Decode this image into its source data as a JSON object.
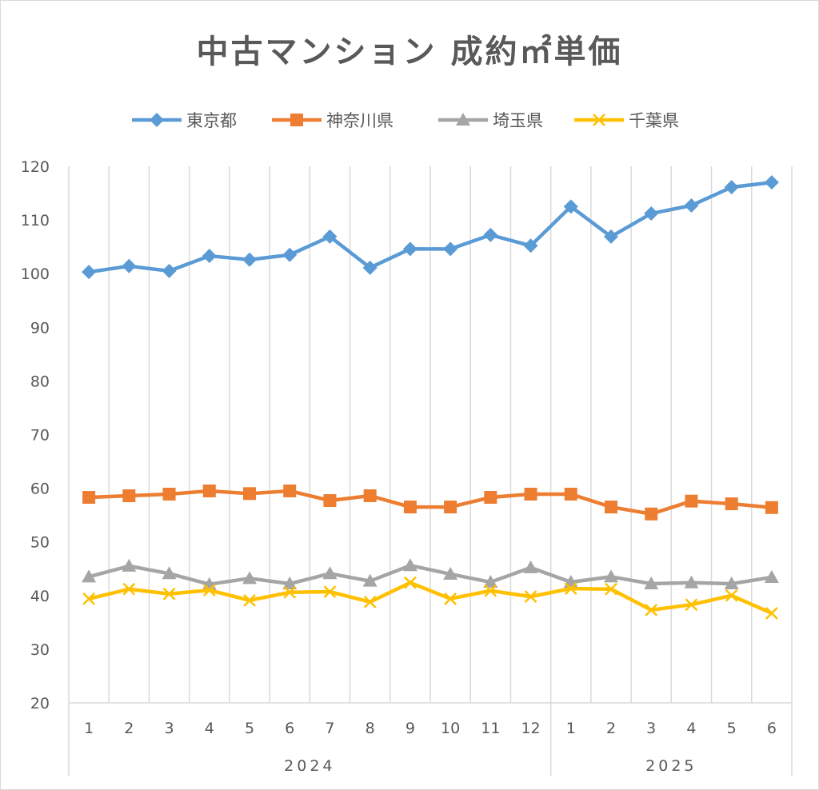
{
  "chart_data": {
    "type": "line",
    "title": "中古マンション 成約㎡単価",
    "xlabel": "",
    "ylabel": "",
    "ylim": [
      20,
      120
    ],
    "yticks": [
      20,
      30,
      40,
      50,
      60,
      70,
      80,
      90,
      100,
      110,
      120
    ],
    "grid": "vertical",
    "legend": "top",
    "categories": [
      "1",
      "2",
      "3",
      "4",
      "5",
      "6",
      "7",
      "8",
      "9",
      "10",
      "11",
      "12",
      "1",
      "2",
      "3",
      "4",
      "5",
      "6"
    ],
    "groups": [
      {
        "label": "2024",
        "count": 12
      },
      {
        "label": "2025",
        "count": 6
      }
    ],
    "series": [
      {
        "name": "東京都",
        "color": "#5b9bd5",
        "marker": "diamond",
        "values": [
          100.3,
          101.4,
          100.5,
          103.3,
          102.6,
          103.5,
          106.9,
          101.1,
          104.6,
          104.6,
          107.2,
          105.2,
          112.5,
          106.9,
          111.2,
          112.7,
          116.1,
          117.0
        ]
      },
      {
        "name": "神奈川県",
        "color": "#ed7d31",
        "marker": "square",
        "values": [
          58.3,
          58.6,
          58.9,
          59.5,
          59.0,
          59.5,
          57.7,
          58.6,
          56.5,
          56.5,
          58.3,
          58.9,
          58.9,
          56.5,
          55.2,
          57.6,
          57.1,
          56.4
        ]
      },
      {
        "name": "埼玉県",
        "color": "#a5a5a5",
        "marker": "triangle",
        "values": [
          43.5,
          45.5,
          44.1,
          42.1,
          43.2,
          42.2,
          44.1,
          42.7,
          45.6,
          44.0,
          42.5,
          45.2,
          42.5,
          43.5,
          42.2,
          42.4,
          42.2,
          43.4
        ]
      },
      {
        "name": "千葉県",
        "color": "#ffc000",
        "marker": "x",
        "values": [
          39.4,
          41.2,
          40.3,
          41.0,
          39.1,
          40.6,
          40.7,
          38.8,
          42.4,
          39.4,
          40.9,
          39.8,
          41.3,
          41.2,
          37.3,
          38.3,
          40.0,
          36.7
        ]
      }
    ]
  }
}
